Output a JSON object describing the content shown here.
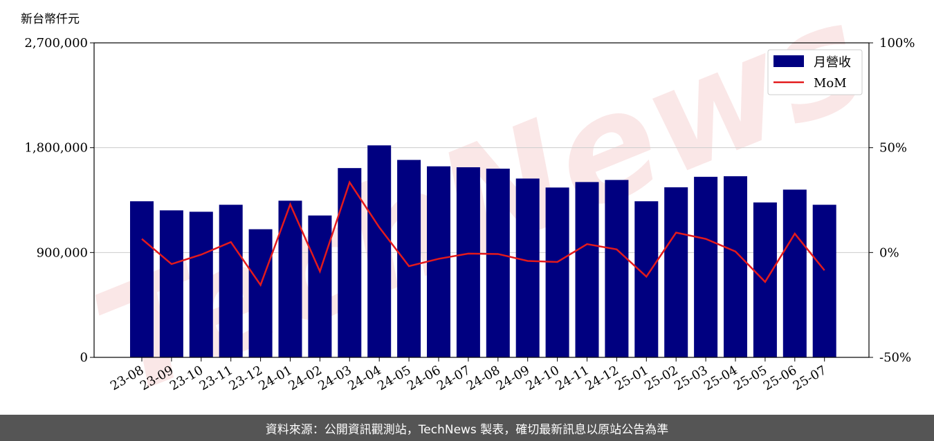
{
  "chart_data": {
    "type": "bar",
    "unit_label": "新台幣仟元",
    "categories": [
      "23-08",
      "23-09",
      "23-10",
      "23-11",
      "23-12",
      "24-01",
      "24-02",
      "24-03",
      "24-04",
      "24-05",
      "24-06",
      "24-07",
      "24-08",
      "24-09",
      "24-10",
      "24-11",
      "24-12",
      "25-01",
      "25-02",
      "25-03",
      "25-04",
      "25-05",
      "25-06",
      "25-07"
    ],
    "series": [
      {
        "name": "月營收",
        "type": "bar",
        "axis": "left",
        "color": "#000080",
        "values": [
          1340000,
          1262000,
          1250000,
          1310000,
          1100000,
          1345000,
          1218000,
          1625000,
          1820000,
          1695000,
          1640000,
          1632000,
          1620000,
          1535000,
          1458000,
          1505000,
          1523000,
          1340000,
          1460000,
          1550000,
          1555000,
          1330000,
          1440000,
          1310000
        ]
      },
      {
        "name": "MoM",
        "type": "line",
        "axis": "right",
        "color": "#e31a1c",
        "values": [
          6.5,
          -5.5,
          -1.0,
          5.0,
          -15.5,
          23.0,
          -9.0,
          33.5,
          12.0,
          -6.5,
          -3.0,
          -0.5,
          -0.7,
          -4.0,
          -4.5,
          4.0,
          1.5,
          -11.5,
          9.5,
          6.5,
          0.5,
          -14.0,
          9.0,
          -8.5
        ]
      }
    ],
    "ylim_left": [
      0,
      2700000
    ],
    "yticks_left": [
      0,
      900000,
      1800000,
      2700000
    ],
    "yticklabels_left": [
      "0",
      "900,000",
      "1,800,000",
      "2,700,000"
    ],
    "ylim_right": [
      -50,
      100
    ],
    "yticks_right": [
      -50,
      0,
      50,
      100
    ],
    "yticklabels_right": [
      "-50%",
      "0%",
      "50%",
      "100%"
    ],
    "grid": "horizontal",
    "legend_position": "top-right",
    "watermark": "TechNews"
  },
  "footer": {
    "text": "資料來源：公開資訊觀測站，TechNews 製表，確切最新訊息以原站公告為準"
  }
}
